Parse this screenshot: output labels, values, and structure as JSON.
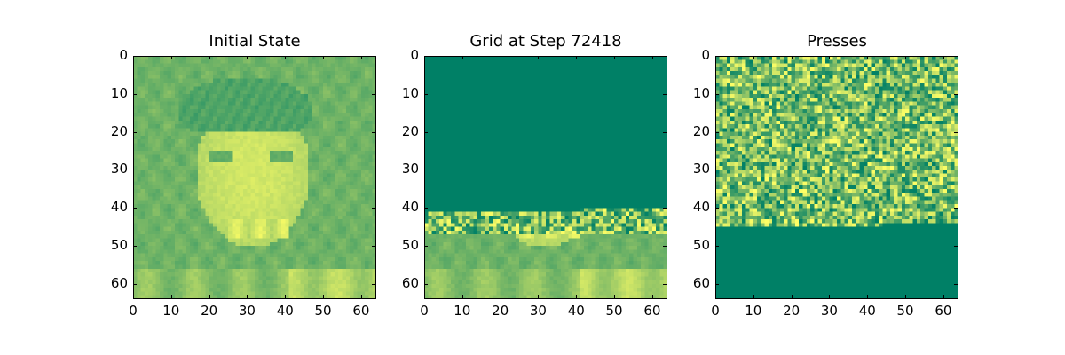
{
  "colors": {
    "dark": "#008066",
    "mid": "#7ab866",
    "light": "#ffff66"
  },
  "chart_data": [
    {
      "type": "heatmap",
      "title": "Initial State",
      "grid_size": [
        64,
        64
      ],
      "xlim": [
        0,
        64
      ],
      "ylim": [
        64,
        0
      ],
      "xticks": [
        "0",
        "10",
        "20",
        "30",
        "40",
        "50",
        "60"
      ],
      "yticks": [
        "0",
        "10",
        "20",
        "30",
        "40",
        "50",
        "60"
      ],
      "content": "face image"
    },
    {
      "type": "heatmap",
      "title": "Grid at Step 72418",
      "grid_size": [
        64,
        64
      ],
      "xlim": [
        0,
        64
      ],
      "ylim": [
        64,
        0
      ],
      "xticks": [
        "0",
        "10",
        "20",
        "30",
        "40",
        "50",
        "60"
      ],
      "yticks": [
        "0",
        "10",
        "20",
        "30",
        "40",
        "50",
        "60"
      ],
      "uniform_region_rows": [
        0,
        41
      ],
      "uniform_value": "dark",
      "noise_band_rows": [
        41,
        47
      ],
      "image_region_rows": [
        47,
        64
      ]
    },
    {
      "type": "heatmap",
      "title": "Presses",
      "grid_size": [
        64,
        64
      ],
      "xlim": [
        0,
        64
      ],
      "ylim": [
        64,
        0
      ],
      "xticks": [
        "0",
        "10",
        "20",
        "30",
        "40",
        "50",
        "60"
      ],
      "yticks": [
        "0",
        "10",
        "20",
        "30",
        "40",
        "50",
        "60"
      ],
      "random_region_rows": [
        0,
        45
      ],
      "uniform_region_rows": [
        45,
        64
      ],
      "uniform_value": "dark"
    }
  ]
}
